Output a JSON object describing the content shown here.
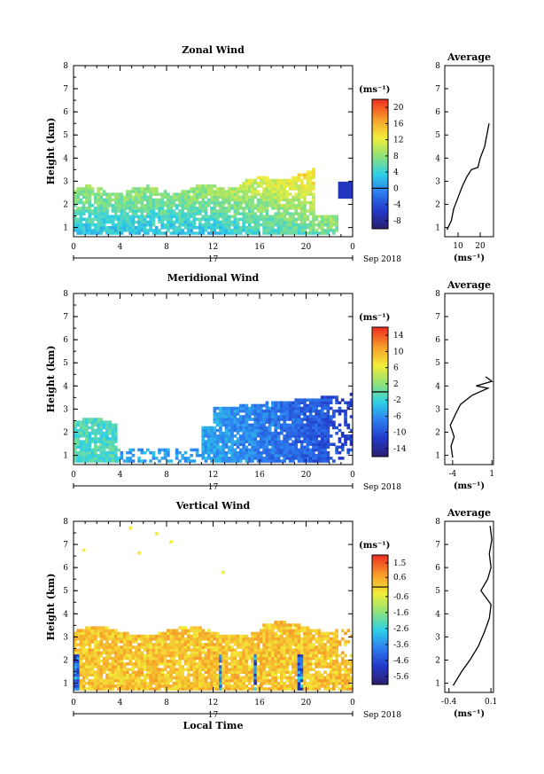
{
  "chart_data": [
    {
      "type": "heatmap",
      "title": "Zonal Wind",
      "ylabel": "Height (km)",
      "xticks": [
        "0",
        "4",
        "8",
        "12",
        "16",
        "20",
        "0"
      ],
      "yticks": [
        "1",
        "2",
        "3",
        "4",
        "5",
        "6",
        "7",
        "8"
      ],
      "ylim": [
        0.6,
        8.0
      ],
      "xlim_hours": [
        0,
        24
      ],
      "day_label": "17",
      "date_label": "Sep 2018",
      "colorbar": {
        "unit_label": "(ms⁻¹)",
        "ticks": [
          "20",
          "16",
          "12",
          "8",
          "4",
          "0",
          "-4",
          "-8"
        ],
        "min": -10,
        "max": 22
      },
      "field_summary": "Values mostly 0 to 12 m/s between 0.8 and 3 km, increasing to 16-20 m/s near 3-3.5 km after 12 LT; patch near -6 m/s at 23 LT around 2.5 km",
      "average": {
        "title": "Average",
        "xticks": [
          "10",
          "20"
        ],
        "xlim": [
          4,
          26
        ],
        "xlabel": "(ms⁻¹)",
        "profile": [
          [
            5,
            0.9
          ],
          [
            7,
            1.3
          ],
          [
            8,
            1.8
          ],
          [
            10,
            2.3
          ],
          [
            12,
            2.8
          ],
          [
            14,
            3.2
          ],
          [
            16,
            3.5
          ],
          [
            19,
            3.6
          ],
          [
            20,
            4.0
          ],
          [
            22,
            4.5
          ],
          [
            23,
            5.0
          ],
          [
            24,
            5.5
          ]
        ]
      }
    },
    {
      "type": "heatmap",
      "title": "Meridional Wind",
      "ylabel": "Height (km)",
      "xticks": [
        "0",
        "4",
        "8",
        "12",
        "16",
        "20",
        "0"
      ],
      "yticks": [
        "1",
        "2",
        "3",
        "4",
        "5",
        "6",
        "7",
        "8"
      ],
      "ylim": [
        0.6,
        8.0
      ],
      "xlim_hours": [
        0,
        24
      ],
      "day_label": "17",
      "date_label": "Sep 2018",
      "colorbar": {
        "unit_label": "(ms⁻¹)",
        "ticks": [
          "14",
          "10",
          "6",
          "2",
          "-2",
          "-6",
          "-10",
          "-14"
        ],
        "min": -16,
        "max": 16
      },
      "field_summary": "Values near 0 to -4 m/s in early hours below 2.5 km, becoming -6 to -12 m/s from 12 to 22 LT below 3.5 km",
      "average": {
        "title": "Average",
        "xticks": [
          "-4",
          "1"
        ],
        "xlim": [
          -5,
          1.2
        ],
        "xlabel": "(ms⁻¹)",
        "profile": [
          [
            -4,
            0.9
          ],
          [
            -4.2,
            1.4
          ],
          [
            -3.8,
            1.8
          ],
          [
            -4.3,
            2.3
          ],
          [
            -3.6,
            2.8
          ],
          [
            -3.0,
            3.2
          ],
          [
            -1.5,
            3.6
          ],
          [
            0.5,
            3.9
          ],
          [
            -1.0,
            4.0
          ],
          [
            1.0,
            4.2
          ],
          [
            0.2,
            4.4
          ]
        ]
      }
    },
    {
      "type": "heatmap",
      "title": "Vertical Wind",
      "ylabel": "Height (km)",
      "xlabel": "Local Time",
      "xticks": [
        "0",
        "4",
        "8",
        "12",
        "16",
        "20",
        "0"
      ],
      "yticks": [
        "1",
        "2",
        "3",
        "4",
        "5",
        "6",
        "7",
        "8"
      ],
      "ylim": [
        0.6,
        8.0
      ],
      "xlim_hours": [
        0,
        24
      ],
      "day_label": "17",
      "date_label": "Sep 2018",
      "colorbar": {
        "unit_label": "(ms⁻¹)",
        "ticks": [
          "1.5",
          "0.6",
          "-0.6",
          "-1.6",
          "-2.6",
          "-3.6",
          "-4.6",
          "-5.6"
        ],
        "min": -6.1,
        "max": 2.0
      },
      "field_summary": "Values mostly -0.6 to 0.8 m/s below 3.4 km, with downward streaks near -2 to -5 m/s in the lowest kilometres",
      "average": {
        "title": "Average",
        "xticks": [
          "-0.4",
          "0.1"
        ],
        "xlim": [
          -0.45,
          0.13
        ],
        "xlabel": "(ms⁻¹)",
        "profile": [
          [
            -0.35,
            0.9
          ],
          [
            -0.25,
            1.5
          ],
          [
            -0.15,
            2.0
          ],
          [
            -0.05,
            2.6
          ],
          [
            0.02,
            3.2
          ],
          [
            0.08,
            3.8
          ],
          [
            0.1,
            4.4
          ],
          [
            -0.02,
            5.0
          ],
          [
            0.06,
            5.5
          ],
          [
            0.1,
            6.0
          ],
          [
            0.08,
            6.6
          ],
          [
            0.11,
            7.2
          ],
          [
            0.09,
            7.8
          ]
        ]
      }
    }
  ]
}
